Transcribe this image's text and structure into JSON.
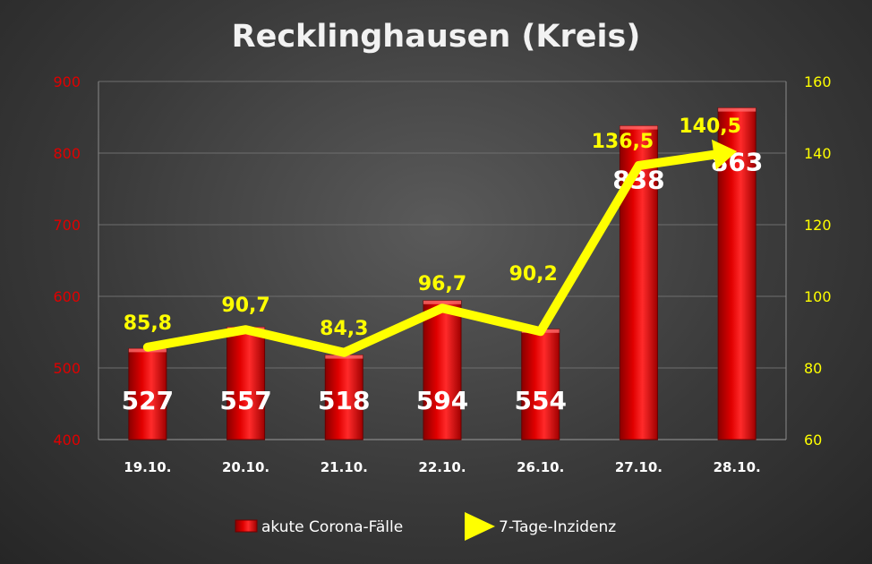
{
  "chart_data": {
    "type": "bar",
    "title": "Recklinghausen (Kreis)",
    "categories": [
      "19.10.",
      "20.10.",
      "21.10.",
      "22.10.",
      "26.10.",
      "27.10.",
      "28.10."
    ],
    "series": [
      {
        "name": "akute Corona-Fälle",
        "type": "bar",
        "axis": "left",
        "color": "#d40000",
        "values": [
          527,
          557,
          518,
          594,
          554,
          838,
          863
        ],
        "labels": [
          "527",
          "557",
          "518",
          "594",
          "554",
          "838",
          "863"
        ]
      },
      {
        "name": "7-Tage-Inzidenz",
        "type": "line",
        "axis": "right",
        "color": "#ffff00",
        "values": [
          85.8,
          90.7,
          84.3,
          96.7,
          90.2,
          136.5,
          140.5
        ],
        "labels": [
          "85,8",
          "90,7",
          "84,3",
          "96,7",
          "90,2",
          "136,5",
          "140,5"
        ]
      }
    ],
    "y_left": {
      "range": [
        400,
        900
      ],
      "ticks": [
        "400",
        "500",
        "600",
        "700",
        "800",
        "900"
      ],
      "color": "#e00000"
    },
    "y_right": {
      "range": [
        60,
        160
      ],
      "ticks": [
        "60",
        "80",
        "100",
        "120",
        "140",
        "160"
      ],
      "color": "#ffff00"
    },
    "grid": true,
    "legend": "bottom-center"
  }
}
